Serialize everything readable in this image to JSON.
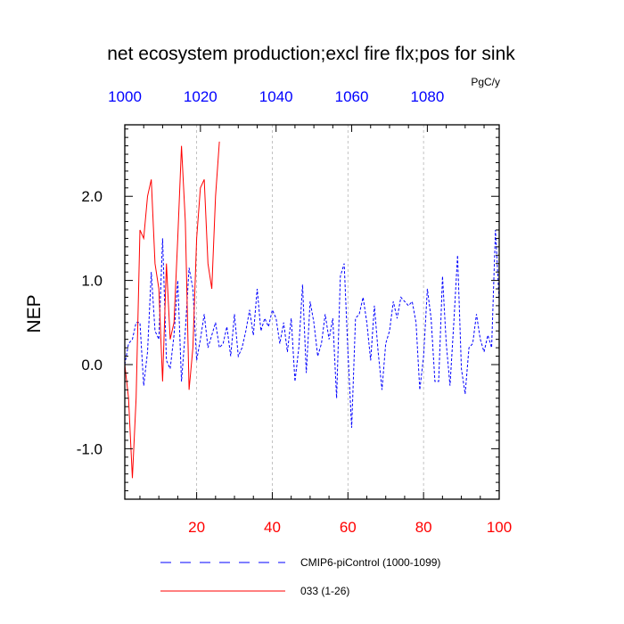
{
  "chart_data": {
    "type": "line",
    "title": "net ecosystem production;excl fire flx;pos for sink",
    "units": "PgC/y",
    "ylabel": "NEP",
    "xlim": [
      1,
      100
    ],
    "ylim": [
      -1.6,
      2.85
    ],
    "x_ticks": [
      "20",
      "40",
      "60",
      "80",
      "100"
    ],
    "x_top_ticks": [
      "1000",
      "1020",
      "1040",
      "1060",
      "1080"
    ],
    "y_ticks": [
      "-1.0",
      "0.0",
      "1.0",
      "2.0"
    ],
    "grid": "vertical dashed lines at major x ticks",
    "legend_position": "bottom",
    "colors": {
      "control": "#0000ff",
      "experiment": "#ff0000",
      "top_axis": "#0000ff",
      "bottom_axis": "#ff0000"
    },
    "series": [
      {
        "name": "CMIP6-piControl (1000-1099)",
        "style": "dashed",
        "values": [
          0.0,
          0.25,
          0.3,
          0.5,
          0.5,
          -0.25,
          0.15,
          1.1,
          0.4,
          0.3,
          1.5,
          0.05,
          -0.05,
          0.35,
          1.0,
          -0.2,
          0.4,
          1.15,
          0.9,
          0.05,
          0.3,
          0.6,
          0.2,
          0.35,
          0.5,
          0.2,
          0.25,
          0.45,
          0.1,
          0.6,
          0.1,
          0.2,
          0.4,
          0.65,
          0.35,
          0.9,
          0.4,
          0.55,
          0.45,
          0.65,
          0.55,
          0.25,
          0.5,
          0.15,
          0.55,
          -0.2,
          0.2,
          0.95,
          -0.1,
          0.75,
          0.5,
          0.1,
          0.25,
          0.6,
          0.3,
          0.55,
          -0.4,
          1.05,
          1.2,
          0.15,
          -0.75,
          0.55,
          0.6,
          0.8,
          0.5,
          0.05,
          0.7,
          0.15,
          -0.3,
          0.25,
          0.4,
          0.75,
          0.55,
          0.8,
          0.75,
          0.7,
          0.75,
          0.5,
          -0.3,
          0.1,
          0.9,
          0.55,
          -0.2,
          -0.2,
          1.05,
          0.25,
          -0.25,
          0.5,
          1.3,
          -0.05,
          -0.35,
          0.2,
          0.25,
          0.6,
          0.3,
          0.15,
          0.35,
          0.2,
          1.6,
          0.75
        ]
      },
      {
        "name": "033 (1-26)",
        "style": "solid",
        "values": [
          0.0,
          -0.4,
          -1.35,
          -0.4,
          1.6,
          1.5,
          2.0,
          2.2,
          1.2,
          0.9,
          -0.2,
          1.2,
          0.3,
          0.5,
          1.5,
          2.6,
          1.7,
          -0.3,
          0.2,
          1.5,
          2.1,
          2.2,
          1.2,
          0.9,
          2.0,
          2.65
        ]
      }
    ]
  }
}
